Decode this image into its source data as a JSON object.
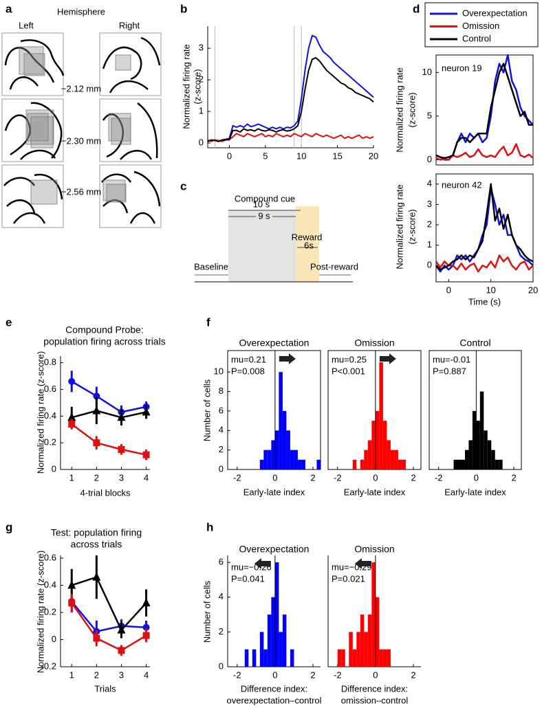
{
  "anatomy": {
    "panel": "a",
    "title": "Hemisphere",
    "columns": [
      "Left",
      "Right"
    ],
    "levels": [
      "−2.12 mm",
      "−2.30 mm",
      "−2.56 mm"
    ]
  },
  "timeline": {
    "panel": "c",
    "title": "Compound cue",
    "spans": [
      "10 s",
      "9 s"
    ],
    "reward": "Reward",
    "reward_span": "6s",
    "baseline": "Baseline",
    "post": "Post-reward"
  },
  "chart_data": [
    {
      "type": "line",
      "panel": "b",
      "legend": "upper right",
      "y_label": [
        "Normalized firing rate",
        "(z-score)"
      ],
      "x": [
        -3,
        -2.5,
        -2,
        -1.5,
        -1,
        -0.5,
        0,
        0.5,
        1,
        1.5,
        2,
        2.5,
        3,
        3.5,
        4,
        4.5,
        5,
        5.5,
        6,
        6.5,
        7,
        7.5,
        8,
        8.5,
        9,
        9.5,
        10,
        10.5,
        11,
        11.5,
        12,
        12.5,
        13,
        13.5,
        14,
        14.5,
        15,
        15.5,
        16,
        16.5,
        17,
        17.5,
        18,
        18.5,
        19,
        19.5,
        20
      ],
      "xlim": [
        -3,
        20
      ],
      "ylim": [
        -0.15,
        3.7
      ],
      "xticks": [
        0,
        5,
        10,
        15,
        20
      ],
      "yticks": [
        0,
        1,
        2,
        3
      ],
      "vlines": [
        -2,
        9,
        10
      ],
      "series": [
        {
          "name": "Overexpectation",
          "color": "#1010e0",
          "values": [
            0.05,
            0.08,
            0.1,
            0.05,
            0.1,
            0.12,
            0.15,
            0.55,
            0.5,
            0.55,
            0.5,
            0.6,
            0.52,
            0.55,
            0.6,
            0.55,
            0.5,
            0.45,
            0.5,
            0.45,
            0.5,
            0.45,
            0.5,
            0.48,
            0.55,
            0.7,
            1.4,
            2.3,
            3.0,
            3.4,
            3.35,
            3.1,
            2.9,
            2.8,
            2.7,
            2.55,
            2.45,
            2.35,
            2.25,
            2.15,
            2.05,
            1.95,
            1.85,
            1.75,
            1.65,
            1.55,
            1.45
          ]
        },
        {
          "name": "Omission",
          "color": "#e01010",
          "values": [
            0.1,
            0.05,
            0.1,
            0.08,
            0.05,
            0.1,
            0.1,
            0.2,
            0.3,
            0.25,
            0.2,
            0.3,
            0.25,
            0.2,
            0.25,
            0.3,
            0.2,
            0.25,
            0.2,
            0.3,
            0.25,
            0.2,
            0.25,
            0.2,
            0.3,
            0.25,
            0.2,
            0.3,
            0.25,
            0.2,
            0.3,
            0.25,
            0.2,
            0.25,
            0.2,
            0.15,
            0.2,
            0.25,
            0.15,
            0.2,
            0.15,
            0.2,
            0.25,
            0.15,
            0.2,
            0.15,
            0.2
          ]
        },
        {
          "name": "Control",
          "color": "#000000",
          "values": [
            0.05,
            0.1,
            0.08,
            0.05,
            0.1,
            0.1,
            0.12,
            0.4,
            0.4,
            0.35,
            0.45,
            0.4,
            0.42,
            0.38,
            0.45,
            0.4,
            0.38,
            0.42,
            0.4,
            0.35,
            0.4,
            0.42,
            0.38,
            0.4,
            0.45,
            0.55,
            1.0,
            1.7,
            2.3,
            2.65,
            2.7,
            2.6,
            2.45,
            2.3,
            2.2,
            2.1,
            2.0,
            1.9,
            1.85,
            1.75,
            1.7,
            1.6,
            1.55,
            1.5,
            1.45,
            1.4,
            1.3
          ]
        }
      ]
    },
    {
      "type": "line",
      "panel": "d",
      "note": [
        "neuron 19"
      ],
      "y_label": [
        "Normalized firing rate",
        "(z-score)"
      ],
      "x": [
        -3,
        -2,
        -1,
        0,
        1,
        2,
        3,
        4,
        5,
        6,
        7,
        8,
        9,
        10,
        11,
        12,
        13,
        14,
        15,
        16,
        17,
        18,
        19,
        20
      ],
      "xlim": [
        -3,
        20
      ],
      "ylim": [
        -0.6,
        12
      ],
      "yticks": [
        0,
        5,
        10
      ],
      "series": [
        {
          "color": "#1010e0",
          "values": [
            0.5,
            0.3,
            0,
            0,
            0.5,
            2,
            3,
            2,
            3,
            2.5,
            3,
            2,
            2.5,
            5,
            9,
            11,
            10,
            12,
            9,
            8,
            6,
            5,
            4.5,
            4
          ]
        },
        {
          "color": "#e01010",
          "values": [
            0.2,
            0,
            0.1,
            0,
            0.5,
            0.3,
            0.5,
            0.8,
            0.3,
            0.5,
            1.2,
            0.5,
            0.3,
            0.5,
            0.3,
            1,
            1.5,
            0.5,
            0.8,
            1.8,
            0.5,
            0.3,
            0.6,
            0.2
          ]
        },
        {
          "color": "#000000",
          "values": [
            0.5,
            0.3,
            0.2,
            0.3,
            0.5,
            2,
            2.5,
            2.5,
            2,
            2.5,
            3,
            3,
            3,
            6,
            8,
            10,
            11,
            9.5,
            8,
            6.5,
            5,
            5.5,
            4,
            4
          ]
        }
      ]
    },
    {
      "type": "line",
      "note": [
        "neuron 42"
      ],
      "y_label": [
        "Normalized firing rate",
        "(z-score)"
      ],
      "x_label": [
        "Time (s)"
      ],
      "x": [
        -3,
        -2,
        -1,
        0,
        1,
        2,
        3,
        4,
        5,
        6,
        7,
        8,
        9,
        10,
        11,
        12,
        13,
        14,
        15,
        16,
        17,
        18,
        19,
        20
      ],
      "xlim": [
        -3,
        20
      ],
      "ylim": [
        -0.8,
        4.5
      ],
      "xticks": [
        0,
        10,
        20
      ],
      "yticks": [
        0,
        1,
        2,
        3,
        4
      ],
      "series": [
        {
          "color": "#1010e0",
          "values": [
            0,
            -0.3,
            0,
            -0.2,
            0,
            0.5,
            0.3,
            0.5,
            0.2,
            0.5,
            0.8,
            1.5,
            2,
            3.8,
            3,
            2,
            2.5,
            1.5,
            1.5,
            1,
            0.5,
            0.3,
            0.2,
            0
          ]
        },
        {
          "color": "#e01010",
          "values": [
            0.2,
            -0.1,
            0.2,
            0,
            0,
            -0.2,
            0.1,
            -0.2,
            0,
            0.1,
            -0.3,
            0,
            -0.1,
            0.2,
            -0.1,
            0.5,
            0.2,
            0.4,
            0,
            -0.2,
            0.1,
            0.2,
            -0.2,
            0
          ]
        },
        {
          "color": "#000000",
          "values": [
            0,
            -0.2,
            -0.1,
            0,
            0.2,
            0.3,
            0.5,
            0.3,
            0.5,
            0.4,
            0.8,
            1.2,
            2.5,
            4,
            2.2,
            2.8,
            1.8,
            2.5,
            1.5,
            1,
            0.8,
            0.5,
            0.3,
            0.2
          ]
        }
      ]
    },
    {
      "type": "errorbar",
      "panel": "e",
      "title": [
        "Compound Probe:",
        "population firing across trials"
      ],
      "y_label": [
        "Normalized firing rate (z-score)"
      ],
      "x_label": [
        "4-trial blocks"
      ],
      "x": [
        1,
        2,
        3,
        4
      ],
      "xlim": [
        0.55,
        4.15
      ],
      "ylim": [
        0,
        0.85
      ],
      "xticks": [
        1,
        2,
        3,
        4
      ],
      "yticks": [
        0,
        0.2,
        0.4,
        0.6,
        0.8
      ],
      "series": [
        {
          "color": "#1010e0",
          "marker": "circle",
          "values": [
            0.66,
            0.55,
            0.43,
            0.47
          ],
          "errors": [
            0.08,
            0.07,
            0.05,
            0.04
          ]
        },
        {
          "color": "#000000",
          "marker": "triangle",
          "values": [
            0.39,
            0.44,
            0.39,
            0.43
          ],
          "errors": [
            0.08,
            0.1,
            0.06,
            0.05
          ]
        },
        {
          "color": "#e01010",
          "marker": "square",
          "values": [
            0.34,
            0.2,
            0.15,
            0.11
          ],
          "errors": [
            0.04,
            0.05,
            0.04,
            0.04
          ]
        }
      ]
    },
    {
      "type": "histogram",
      "panel": "f",
      "title": [
        "Overexpectation"
      ],
      "note": [
        "mu=0.21",
        "P=0.008"
      ],
      "arrow": "right",
      "y_label": [
        "Number of cells"
      ],
      "x_label": [
        "Early-late index"
      ],
      "color": "#0000ff",
      "vline": 0,
      "bins": [
        -1.6,
        -1.4,
        -1.2,
        -1.0,
        -0.8,
        -0.6,
        -0.4,
        -0.2,
        0,
        0.2,
        0.4,
        0.6,
        0.8,
        1.0,
        1.2,
        1.4,
        1.6,
        1.8,
        2.0,
        2.2,
        2.4,
        2.6
      ],
      "values": [
        0,
        0,
        0,
        0,
        1,
        2,
        2,
        3,
        4,
        10,
        6,
        4,
        2,
        2,
        1,
        1,
        0,
        0,
        0,
        1,
        0
      ],
      "xlim": [
        -2.5,
        2.4
      ],
      "ylim": [
        0,
        12.2
      ],
      "xticks": [
        -2,
        0,
        2
      ],
      "yticks": [
        0,
        2,
        4,
        6,
        8,
        10
      ]
    },
    {
      "type": "histogram",
      "title": [
        "Omission"
      ],
      "note": [
        "mu=0.25",
        "P<0.001"
      ],
      "arrow": "right",
      "x_label": [
        "Early-late index"
      ],
      "color": "#ff0000",
      "vline": 0,
      "bins": [
        -1.6,
        -1.4,
        -1.2,
        -1.0,
        -0.8,
        -0.6,
        -0.4,
        -0.2,
        0,
        0.2,
        0.4,
        0.6,
        0.8,
        1.0,
        1.2,
        1.4,
        1.6,
        1.8,
        2.0,
        2.2,
        2.4,
        2.6
      ],
      "values": [
        0,
        0,
        1,
        0,
        1,
        2,
        3,
        5,
        6,
        11,
        5,
        3,
        2,
        2,
        1,
        1,
        0,
        0,
        0,
        0,
        0
      ],
      "xlim": [
        -2.5,
        2.4
      ],
      "ylim": [
        0,
        12.2
      ],
      "xticks": [
        -2,
        0,
        2
      ]
    },
    {
      "type": "histogram",
      "title": [
        "Control"
      ],
      "note": [
        "mu=-0.01",
        "P=0.887"
      ],
      "x_label": [
        "Early-late index"
      ],
      "color": "#000000",
      "vline": 0,
      "bins": [
        -1.6,
        -1.4,
        -1.2,
        -1.0,
        -0.8,
        -0.6,
        -0.4,
        -0.2,
        0,
        0.2,
        0.4,
        0.6,
        0.8,
        1.0,
        1.2,
        1.4,
        1.6,
        1.8,
        2.0,
        2.2,
        2.4,
        2.6
      ],
      "values": [
        0,
        0,
        1,
        1,
        1,
        2,
        3,
        6,
        5,
        8,
        4,
        3,
        2,
        1,
        1,
        0,
        0,
        0,
        0,
        0,
        0
      ],
      "xlim": [
        -2.5,
        2.4
      ],
      "ylim": [
        0,
        12.2
      ],
      "xticks": [
        -2,
        0,
        2
      ]
    },
    {
      "type": "errorbar",
      "panel": "g",
      "title": [
        "Test: population firing",
        "across trials"
      ],
      "y_label": [
        "Normalized firing rate (z-score)"
      ],
      "x_label": [
        "Trials"
      ],
      "x": [
        1,
        2,
        3,
        4
      ],
      "xlim": [
        0.55,
        4.15
      ],
      "ylim": [
        -0.2,
        0.62
      ],
      "xticks": [
        1,
        2,
        3,
        4
      ],
      "yticks": [
        -0.2,
        0,
        0.2,
        0.4,
        0.6
      ],
      "series": [
        {
          "color": "#1010e0",
          "marker": "circle",
          "values": [
            0.28,
            0.06,
            0.1,
            0.09
          ],
          "errors": [
            0.08,
            0.08,
            0.05,
            0.05
          ]
        },
        {
          "color": "#000000",
          "marker": "triangle",
          "values": [
            0.4,
            0.46,
            0.07,
            0.27
          ],
          "errors": [
            0.12,
            0.16,
            0.06,
            0.1
          ]
        },
        {
          "color": "#e01010",
          "marker": "square",
          "values": [
            0.27,
            0.01,
            -0.08,
            0.03
          ],
          "errors": [
            0.07,
            0.06,
            0.04,
            0.05
          ]
        }
      ]
    },
    {
      "type": "histogram",
      "panel": "h",
      "title": [
        "Overexpectation"
      ],
      "note": [
        "mu=−0.26",
        "P=0.041"
      ],
      "arrow": "left",
      "y_label": [
        "Number of cells"
      ],
      "x_label": [
        "Difference index:",
        "overexpectation–control"
      ],
      "color": "#0000ff",
      "vline": 0,
      "bins": [
        -1.6,
        -1.4,
        -1.2,
        -1.0,
        -0.8,
        -0.6,
        -0.4,
        -0.2,
        0,
        0.2,
        0.4,
        0.6,
        0.8,
        1.0
      ],
      "values": [
        1,
        0,
        1,
        0,
        2,
        1,
        3,
        4,
        6,
        2,
        3,
        0,
        1
      ],
      "xlim": [
        -2.5,
        2.4
      ],
      "ylim": [
        0,
        6.4
      ],
      "xticks": [
        -2,
        0,
        2
      ],
      "yticks": [
        0,
        2,
        4,
        6
      ]
    },
    {
      "type": "histogram",
      "title": [
        "Omission"
      ],
      "note": [
        "mu=−0.29",
        "P=0.021"
      ],
      "arrow": "left",
      "x_label": [
        "Difference index:",
        "omission–control"
      ],
      "color": "#ff0000",
      "vline": 0,
      "bins": [
        -2.0,
        -1.8,
        -1.6,
        -1.4,
        -1.2,
        -1.0,
        -0.8,
        -0.6,
        -0.4,
        -0.2,
        0,
        0.2,
        0.4,
        0.6,
        0.8
      ],
      "values": [
        1,
        1,
        0,
        2,
        1,
        2,
        3,
        2,
        3,
        6,
        4,
        1,
        1,
        1
      ],
      "xlim": [
        -2.5,
        2.4
      ],
      "ylim": [
        0,
        6.4
      ],
      "xticks": [
        -2,
        0,
        2
      ]
    }
  ]
}
